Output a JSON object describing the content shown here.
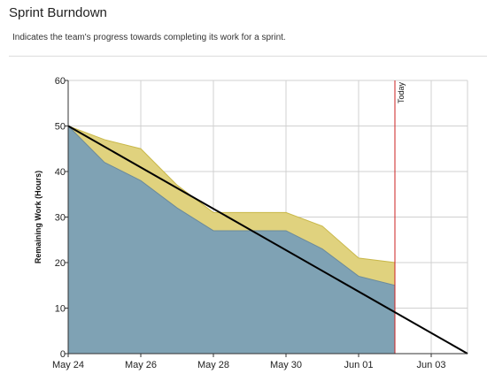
{
  "panel": {
    "title": "Sprint Burndown",
    "description": "Indicates the team's progress towards completing its work for a sprint."
  },
  "colors": {
    "completed_band": "#e0d27e",
    "completed_band_edge": "#c9b84a",
    "remaining_area": "#7fa2b4",
    "remaining_edge": "#6a8a9c",
    "ideal_line": "#000000",
    "today_line": "#cc2222",
    "grid": "#d0d0d0",
    "axis": "#333333"
  },
  "chart_data": {
    "type": "area",
    "ylabel": "Remaining Work (Hours)",
    "xlabel": "",
    "ylim": [
      0,
      60
    ],
    "yticks": [
      0,
      10,
      20,
      30,
      40,
      50,
      60
    ],
    "x_dates": [
      "May 24",
      "May 25",
      "May 26",
      "May 27",
      "May 28",
      "May 29",
      "May 30",
      "May 31",
      "Jun 01",
      "Jun 02"
    ],
    "x_tick_labels": [
      "May 24",
      "May 26",
      "May 28",
      "May 30",
      "Jun 01",
      "Jun 03"
    ],
    "x_range": [
      "May 24",
      "Jun 04"
    ],
    "grid": true,
    "series": [
      {
        "type": "area",
        "values": [
          50,
          42,
          38,
          32,
          27,
          27,
          27,
          23,
          17,
          15
        ]
      },
      {
        "type": "stacked-area",
        "values": [
          50,
          47,
          45,
          37,
          31,
          31,
          31,
          28,
          21,
          20
        ]
      },
      {
        "type": "line",
        "points": [
          [
            "May 24",
            50
          ],
          [
            "Jun 04",
            0
          ]
        ]
      }
    ],
    "today_marker": {
      "label": "Today",
      "date": "Jun 02"
    }
  }
}
